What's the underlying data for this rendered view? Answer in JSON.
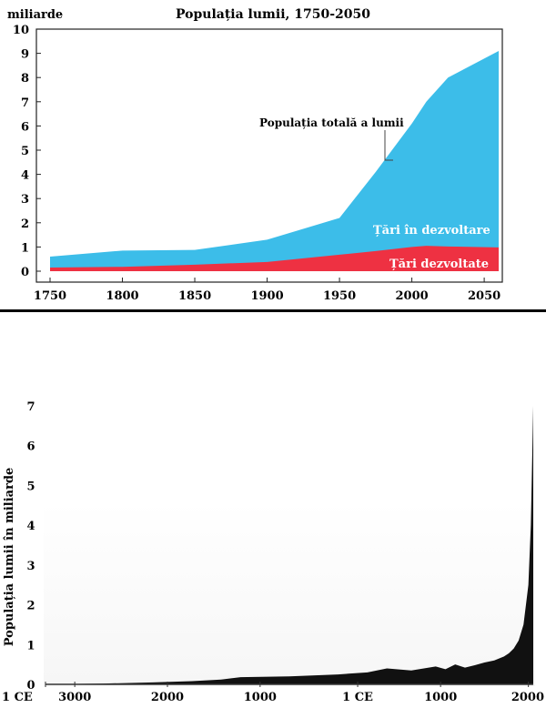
{
  "chart_data": [
    {
      "type": "area",
      "title": "Populația lumii, 1750-2050",
      "ylabel": "miliarde",
      "xlabel": "",
      "xlim": [
        1750,
        2060
      ],
      "ylim": [
        0,
        10
      ],
      "x_ticks": [
        1750,
        1800,
        1850,
        1900,
        1950,
        2000,
        2050
      ],
      "y_ticks": [
        0,
        1,
        2,
        3,
        4,
        5,
        6,
        7,
        8,
        9,
        10
      ],
      "stacked": true,
      "grid": false,
      "colors": {
        "total": "#3cbde9",
        "developed": "#ee3142",
        "background": "#ffffff"
      },
      "annotation": "Populația totală a lumii",
      "series": [
        {
          "name": "Țări dezvoltate",
          "x": [
            1750,
            1800,
            1850,
            1900,
            1950,
            1975,
            2000,
            2010,
            2025,
            2060
          ],
          "values": [
            0.15,
            0.18,
            0.27,
            0.38,
            0.68,
            0.83,
            1.0,
            1.05,
            1.02,
            0.98
          ]
        },
        {
          "name": "Țări în dezvoltare",
          "x": [
            1750,
            1800,
            1850,
            1900,
            1950,
            1975,
            2000,
            2010,
            2025,
            2060
          ],
          "total": [
            0.6,
            0.85,
            0.88,
            1.3,
            2.2,
            4.1,
            6.1,
            7.0,
            8.0,
            9.1
          ]
        }
      ]
    },
    {
      "type": "area",
      "title": "",
      "ylabel": "Populația lumii în miliarde",
      "ylim": [
        0,
        7
      ],
      "y_ticks": [
        0,
        1,
        2,
        3,
        4,
        5,
        6,
        7
      ],
      "x_tick_labels": [
        "1 CE",
        "3000",
        "2000",
        "1000",
        "1 CE",
        "1000",
        "2000"
      ],
      "grid": false,
      "colors": {
        "fill": "#111111",
        "background": "#ffffff"
      },
      "series": [
        {
          "x": [
            0,
            0.05,
            0.12,
            0.22,
            0.3,
            0.36,
            0.4,
            0.5,
            0.6,
            0.66,
            0.7,
            0.75,
            0.8,
            0.82,
            0.84,
            0.86,
            0.88,
            0.9,
            0.92,
            0.94,
            0.95,
            0.96,
            0.97,
            0.98,
            0.985,
            0.99,
            0.995,
            1.0
          ],
          "values": [
            0,
            0.01,
            0.02,
            0.05,
            0.08,
            0.12,
            0.18,
            0.2,
            0.25,
            0.3,
            0.4,
            0.35,
            0.45,
            0.38,
            0.5,
            0.42,
            0.48,
            0.55,
            0.6,
            0.7,
            0.78,
            0.9,
            1.1,
            1.5,
            2.0,
            2.5,
            4.0,
            7.0
          ]
        }
      ]
    }
  ]
}
